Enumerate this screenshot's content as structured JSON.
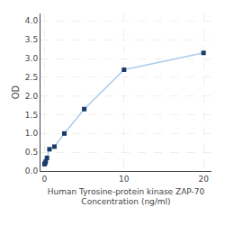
{
  "chart_data": {
    "type": "line",
    "xlabel": "Human Tyrosine-protein kinase ZAP-70\nConcentration (ng/ml)",
    "ylabel": "OD",
    "x": [
      0.0,
      0.078125,
      0.15625,
      0.3125,
      0.625,
      1.25,
      2.5,
      5.0,
      10.0,
      20.0
    ],
    "series": [
      {
        "type": "line",
        "color": "#aaccee",
        "values": [
          0.183,
          0.21,
          0.25,
          0.35,
          0.58,
          0.65,
          1.0,
          1.65,
          2.7,
          3.15
        ]
      },
      {
        "type": "scatter",
        "color": "#1a3a6b",
        "marker": "square",
        "values": [
          0.183,
          0.21,
          0.25,
          0.35,
          0.58,
          0.65,
          1.0,
          1.65,
          2.7,
          3.15
        ]
      }
    ],
    "xlim": [
      -0.5,
      21
    ],
    "xticks": [
      0,
      10,
      20
    ],
    "ylim": [
      0,
      4.2
    ],
    "yticks": [
      {
        "value": 0,
        "label": "0.0"
      },
      0.5,
      {
        "value": 1,
        "label": "1.0"
      },
      1.5,
      {
        "value": 2,
        "label": "2.0"
      },
      2.5,
      {
        "value": 3,
        "label": "3.0"
      },
      3.5,
      {
        "value": 4,
        "label": "4.0"
      }
    ],
    "grid": true
  }
}
